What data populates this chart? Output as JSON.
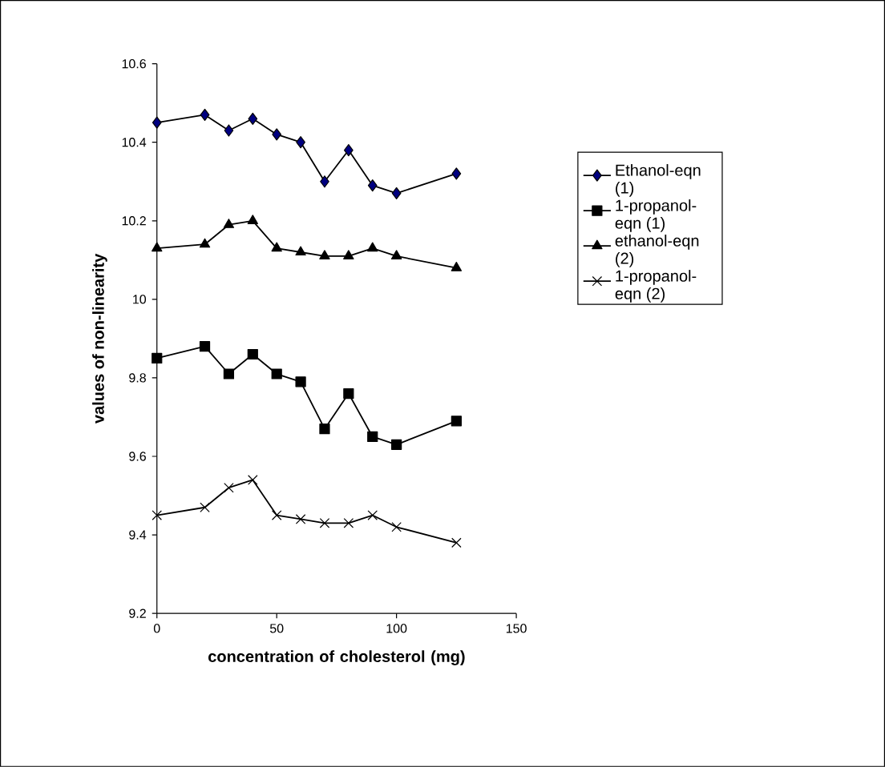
{
  "chart_data": {
    "type": "line",
    "xlabel": "concentration of cholesterol (mg)",
    "ylabel": "values of non-linearity",
    "x": [
      0,
      20,
      30,
      40,
      50,
      60,
      70,
      80,
      90,
      100,
      125
    ],
    "xlim": [
      0,
      150
    ],
    "xticks": [
      0,
      50,
      100,
      150
    ],
    "ylim": [
      9.2,
      10.6
    ],
    "yticks": [
      9.2,
      9.4,
      9.6,
      9.8,
      10,
      10.2,
      10.4,
      10.6
    ],
    "grid": false,
    "legend": "right",
    "line_style": "solid",
    "series": [
      {
        "name": "Ethanol-eqn (1)",
        "color": "#000080",
        "marker": "diamond",
        "values": [
          10.45,
          10.47,
          10.43,
          10.46,
          10.42,
          10.4,
          10.3,
          10.38,
          10.29,
          10.27,
          10.32
        ]
      },
      {
        "name": "1-propanol-eqn (1)",
        "color": "#000000",
        "marker": "square",
        "values": [
          9.85,
          9.88,
          9.81,
          9.86,
          9.81,
          9.79,
          9.67,
          9.76,
          9.65,
          9.63,
          9.69
        ]
      },
      {
        "name": "ethanol-eqn (2)",
        "color": "#000000",
        "marker": "triangle",
        "values": [
          10.13,
          10.14,
          10.19,
          10.2,
          10.13,
          10.12,
          10.11,
          10.11,
          10.13,
          10.11,
          10.08
        ]
      },
      {
        "name": "1-propanol-eqn (2)",
        "color": "#000000",
        "marker": "cross",
        "values": [
          9.45,
          9.47,
          9.52,
          9.54,
          9.45,
          9.44,
          9.43,
          9.43,
          9.45,
          9.42,
          9.38
        ]
      }
    ]
  }
}
